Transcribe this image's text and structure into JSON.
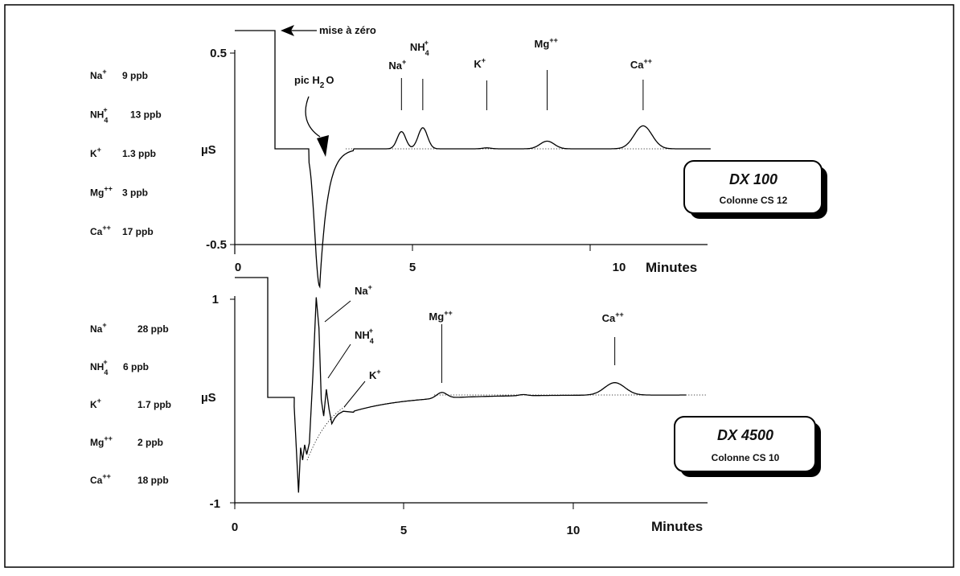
{
  "chart_data": [
    {
      "type": "line",
      "instrument": "DX 100",
      "column": "Colonne CS 12",
      "xlabel": "Minutes",
      "ylabel": "µS",
      "xlim": [
        0,
        13.3
      ],
      "ylim": [
        -0.72,
        0.64
      ],
      "xticks": [
        "0",
        "5",
        "10"
      ],
      "yticks": [
        "0.5",
        "-0.5"
      ],
      "baseline": -0.01,
      "zero_note": "mise à zéro",
      "water_note": {
        "main": "pic H",
        "sub": "2",
        "tail": "O"
      },
      "concentrations": [
        {
          "ion": "Na",
          "charge": "+",
          "value": "9 ppb"
        },
        {
          "ion": "NH",
          "sub": "4",
          "charge": "+",
          "value": "13 ppb"
        },
        {
          "ion": "K",
          "charge": "+",
          "value": "1.3 ppb"
        },
        {
          "ion": "Mg",
          "charge": "++",
          "value": "3 ppb"
        },
        {
          "ion": "Ca",
          "charge": "++",
          "value": "17 ppb"
        }
      ],
      "peaks": [
        {
          "ion": "Na",
          "charge": "+",
          "time": 4.6,
          "height": 0.09
        },
        {
          "ion": "NH",
          "sub": "4",
          "charge": "+",
          "time": 5.2,
          "height": 0.11
        },
        {
          "ion": "K",
          "charge": "+",
          "time": 7.0,
          "height": 0.005
        },
        {
          "ion": "Mg",
          "charge": "++",
          "time": 8.7,
          "height": 0.04
        },
        {
          "ion": "Ca",
          "charge": "++",
          "time": 11.4,
          "height": 0.12
        }
      ]
    },
    {
      "type": "line",
      "instrument": "DX 4500",
      "column": "Colonne CS 10",
      "xlabel": "Minutes",
      "ylabel": "µS",
      "xlim": [
        0,
        13.3
      ],
      "ylim": [
        -1.05,
        1.25
      ],
      "xticks": [
        "0",
        "5",
        "10"
      ],
      "yticks": [
        "1",
        "-1"
      ],
      "baseline": -0.01,
      "concentrations": [
        {
          "ion": "Na",
          "charge": "+",
          "value": "28 ppb"
        },
        {
          "ion": "NH",
          "sub": "4",
          "charge": "+",
          "value": "6 ppb"
        },
        {
          "ion": "K",
          "charge": "+",
          "value": "1.7 ppb"
        },
        {
          "ion": "Mg",
          "charge": "++",
          "value": "2 ppb"
        },
        {
          "ion": "Ca",
          "charge": "++",
          "value": "18 ppb"
        }
      ],
      "peaks": [
        {
          "ion": "Na",
          "charge": "+",
          "time": 2.5,
          "height": 1.25
        },
        {
          "ion": "NH",
          "sub": "4",
          "charge": "+",
          "time": 2.8,
          "height": 0.35
        },
        {
          "ion": "K",
          "charge": "+",
          "time": 3.3,
          "height": 0.02
        },
        {
          "ion": "Mg",
          "charge": "++",
          "time": 6.1,
          "height": 0.06
        },
        {
          "ion": "Ca",
          "charge": "++",
          "time": 11.2,
          "height": 0.13
        }
      ]
    }
  ]
}
